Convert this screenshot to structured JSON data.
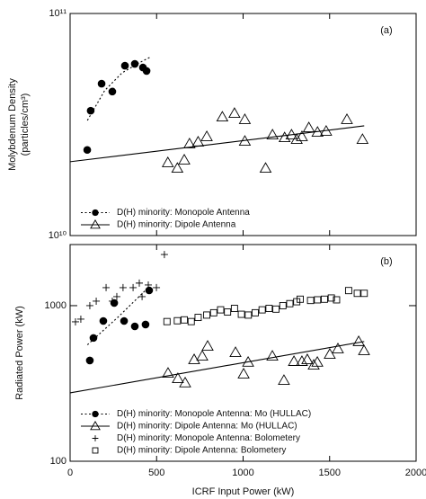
{
  "chart_data": [
    {
      "type": "scatter",
      "log_y": true,
      "ylabel": [
        "Molybdenum Density",
        "(particles/cm³)"
      ],
      "annotation": "(a)",
      "xlim": [
        0,
        2000
      ],
      "xticks": [
        0,
        500,
        1000,
        1500,
        2000
      ],
      "show_xtick_labels": false,
      "ylim": [
        10000000000.0,
        100000000000.0
      ],
      "yticks": [
        {
          "value": 10000000000.0,
          "label": "10¹⁰"
        },
        {
          "value": 100000000000.0,
          "label": "10¹¹"
        }
      ],
      "legend": "lower left",
      "series": [
        {
          "name": "D(H) minority: Monopole Antenna",
          "color": "#000000",
          "marker": "filled-circle",
          "line": "dotted",
          "x": [
            99,
            119,
            182,
            244,
            317,
            374,
            421,
            442
          ],
          "values": [
            24300000000.0,
            36500000000.0,
            48300000000.0,
            44500000000.0,
            58200000000.0,
            59300000000.0,
            57100000000.0,
            55100000000.0
          ],
          "fit": {
            "x": [
              100,
              200,
              300,
              400,
              470
            ],
            "values": [
              33000000000.0,
              45000000000.0,
              54000000000.0,
              60000000000.0,
              64000000000.0
            ]
          }
        },
        {
          "name": "D(H) minority: Dipole Antenna",
          "color": "#000000",
          "marker": "triangle",
          "line": "solid",
          "x": [
            565,
            620,
            660,
            690,
            740,
            790,
            880,
            950,
            1010,
            1010,
            1130,
            1170,
            1240,
            1280,
            1310,
            1340,
            1380,
            1430,
            1480,
            1600,
            1690
          ],
          "values": [
            21300000000.0,
            20100000000.0,
            21900000000.0,
            25900000000.0,
            26400000000.0,
            27900000000.0,
            34200000000.0,
            35500000000.0,
            33300000000.0,
            26600000000.0,
            20100000000.0,
            28400000000.0,
            27600000000.0,
            28400000000.0,
            27100000000.0,
            27900000000.0,
            30600000000.0,
            29200000000.0,
            29500000000.0,
            33300000000.0,
            27100000000.0
          ],
          "fit": {
            "x": [
              0,
              1700
            ],
            "values": [
              21500000000.0,
              31200000000.0
            ]
          }
        }
      ]
    },
    {
      "type": "scatter",
      "log_y": true,
      "ylabel": "Radiated Power (kW)",
      "xlabel": "ICRF Input Power (kW)",
      "annotation": "(b)",
      "xlim": [
        0,
        2000
      ],
      "xticks": [
        0,
        500,
        1000,
        1500,
        2000
      ],
      "show_xtick_labels": true,
      "ylim": [
        100,
        2470
      ],
      "yticks": [
        100,
        1000
      ],
      "legend": "lower left",
      "series": [
        {
          "name": "D(H) minority: Monopole Antenna: Mo (HULLAC)",
          "color": "#000000",
          "marker": "filled-circle",
          "line": "dotted",
          "x": [
            114,
            135,
            192,
            255,
            312,
            374,
            436,
            457
          ],
          "values": [
            444,
            620,
            797,
            1040,
            797,
            736,
            756,
            1253
          ],
          "fit": {
            "x": [
              100,
              280,
              450
            ],
            "values": [
              560,
              850,
              1300
            ]
          }
        },
        {
          "name": "D(H) minority: Dipole Antenna: Mo (HULLAC)",
          "color": "#000000",
          "marker": "triangle",
          "line": "solid",
          "x": [
            566,
            623,
            665,
            717,
            764,
            795,
            956,
            1003,
            1029,
            1169,
            1236,
            1294,
            1340,
            1371,
            1408,
            1429,
            1501,
            1548,
            1668,
            1699
          ],
          "values": [
            368,
            340,
            319,
            450,
            474,
            549,
            500,
            364,
            433,
            474,
            331,
            438,
            438,
            450,
            415,
            433,
            487,
            528,
            588,
            514
          ],
          "fit": {
            "x": [
              0,
              1700
            ],
            "values": [
              275,
              588
            ]
          }
        },
        {
          "name": "D(H) minority: Monopole Antenna: Bolometery",
          "color": "#000000",
          "marker": "plus",
          "line": null,
          "x": [
            31,
            62,
            114,
            151,
            208,
            244,
            270,
            306,
            364,
            400,
            416,
            452,
            499,
            545
          ],
          "values": [
            787,
            819,
            1000,
            1069,
            1306,
            1069,
            1143,
            1306,
            1306,
            1396,
            1143,
            1358,
            1306,
            2131
          ]
        },
        {
          "name": "D(H) minority: Dipole Antenna: Bolometery",
          "color": "#000000",
          "marker": "square",
          "line": null,
          "x": [
            560,
            620,
            660,
            700,
            740,
            790,
            830,
            870,
            910,
            950,
            990,
            1030,
            1070,
            1110,
            1150,
            1190,
            1230,
            1270,
            1310,
            1330,
            1390,
            1430,
            1470,
            1510,
            1540,
            1610,
            1660,
            1700
          ],
          "values": [
            790,
            800,
            810,
            790,
            840,
            870,
            900,
            940,
            910,
            960,
            880,
            870,
            900,
            940,
            960,
            950,
            1000,
            1030,
            1060,
            1100,
            1080,
            1090,
            1100,
            1120,
            1090,
            1250,
            1200,
            1200
          ]
        }
      ]
    }
  ]
}
